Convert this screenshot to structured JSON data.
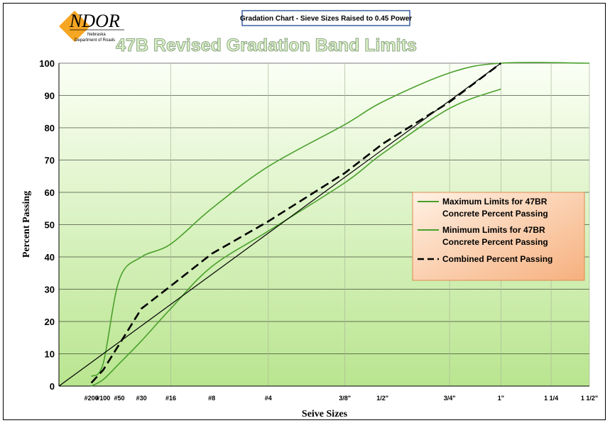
{
  "logo": {
    "name": "NDOR",
    "line1": "Nebraska",
    "line2": "Department of Roads"
  },
  "subtitle": "Gradation Chart - Sieve Sizes Raised to 0.45 Power",
  "chart_data": {
    "type": "line",
    "title": "47B Revised Gradation Band Limits",
    "xlabel": "Seive Sizes",
    "ylabel": "Percent Passing",
    "x_scale": "sieve size raised to 0.45 power",
    "sieve_labels": [
      "#200",
      "#100",
      "#50",
      "#30",
      "#16",
      "#8",
      "#4",
      "3/8\"",
      "1/2\"",
      "3/4\"",
      "1\"",
      "1 1/4",
      "1 1/2\""
    ],
    "sieve_sizes_mm": [
      0.075,
      0.15,
      0.3,
      0.6,
      1.18,
      2.36,
      4.75,
      9.5,
      12.5,
      19.0,
      25.0,
      31.75,
      37.5
    ],
    "ylim": [
      0,
      100
    ],
    "yticks": [
      0,
      10,
      20,
      30,
      40,
      50,
      60,
      70,
      80,
      90,
      100
    ],
    "grid": true,
    "legend_position": "right",
    "series": [
      {
        "name": "Maximum Limits for 47BR Concrete Percent Passing",
        "color": "#4aa02c",
        "style": "solid",
        "points": [
          [
            0.075,
            3
          ],
          [
            0.15,
            7
          ],
          [
            0.3,
            33
          ],
          [
            0.6,
            40
          ],
          [
            1.18,
            44
          ],
          [
            2.36,
            55
          ],
          [
            4.75,
            68
          ],
          [
            9.5,
            81
          ],
          [
            12.5,
            88
          ],
          [
            19.0,
            97
          ],
          [
            25.0,
            100
          ],
          [
            37.5,
            100
          ]
        ]
      },
      {
        "name": "Minimum Limits for 47BR Concrete Percent Passing",
        "color": "#4aa02c",
        "style": "solid",
        "points": [
          [
            0.075,
            0
          ],
          [
            0.15,
            2
          ],
          [
            0.3,
            7
          ],
          [
            0.6,
            14
          ],
          [
            1.18,
            24
          ],
          [
            2.36,
            37
          ],
          [
            4.75,
            48
          ],
          [
            9.5,
            63
          ],
          [
            12.5,
            72
          ],
          [
            19.0,
            86
          ],
          [
            25.0,
            92
          ]
        ]
      },
      {
        "name": "Combined Percent Passing",
        "color": "#000000",
        "style": "dashed",
        "points": [
          [
            0.075,
            1
          ],
          [
            0.15,
            5
          ],
          [
            0.3,
            13
          ],
          [
            0.6,
            24
          ],
          [
            1.18,
            31
          ],
          [
            2.36,
            41
          ],
          [
            4.75,
            51
          ],
          [
            9.5,
            66
          ],
          [
            12.5,
            75
          ],
          [
            19.0,
            88
          ],
          [
            25.0,
            100
          ]
        ]
      },
      {
        "name": "",
        "color": "#000000",
        "style": "solid",
        "points": [
          [
            0,
            0
          ],
          [
            25.0,
            100
          ]
        ]
      }
    ]
  }
}
